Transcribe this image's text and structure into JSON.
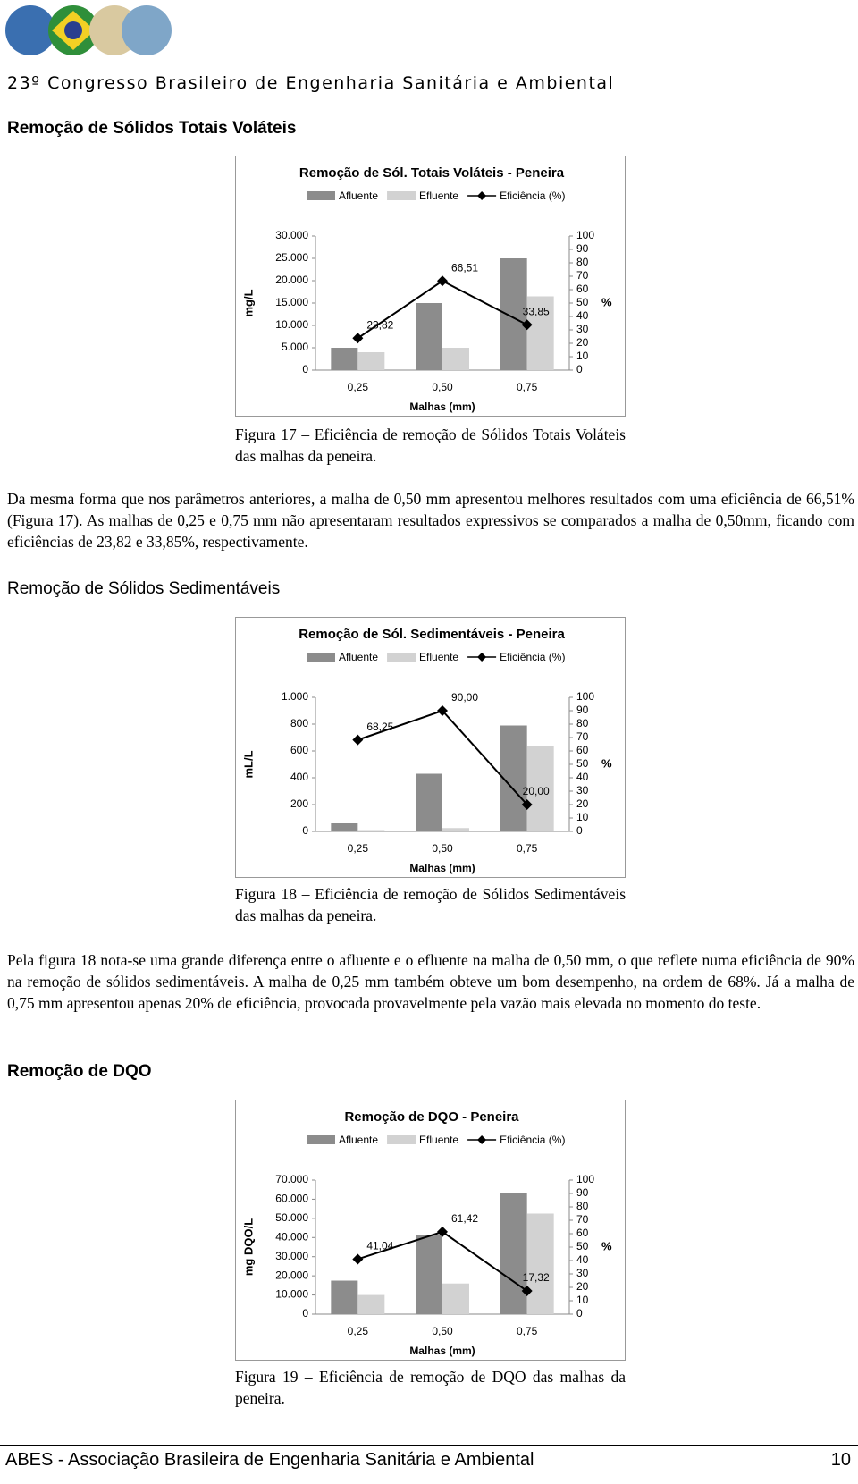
{
  "header": {
    "title": "23º Congresso Brasileiro de Engenharia Sanitária e Ambiental"
  },
  "sections": [
    {
      "heading": "Remoção de Sólidos Totais Voláteis",
      "caption": "Figura 17 – Eficiência de remoção de Sólidos Totais Voláteis das malhas da peneira.",
      "paragraph": "Da mesma forma que nos parâmetros anteriores, a malha de 0,50 mm apresentou melhores resultados com uma eficiência de 66,51% (Figura 17). As malhas de 0,25 e 0,75 mm não apresentaram resultados expressivos se comparados a malha de 0,50mm, ficando com eficiências de 23,82 e 33,85%, respectivamente."
    },
    {
      "heading": "Remoção de Sólidos Sedimentáveis",
      "caption": "Figura 18 – Eficiência de remoção de Sólidos Sedimentáveis das malhas da peneira.",
      "paragraph": "Pela figura 18 nota-se uma grande diferença entre o afluente e o efluente na malha de 0,50 mm, o que reflete numa eficiência de 90% na remoção de sólidos sedimentáveis. A malha de 0,25 mm também obteve um bom desempenho, na ordem de 68%. Já a malha de 0,75 mm apresentou apenas 20% de eficiência, provocada provavelmente pela vazão mais elevada no momento do teste."
    },
    {
      "heading": "Remoção de DQO",
      "caption": "Figura 19 – Eficiência de remoção de DQO das malhas da peneira."
    }
  ],
  "chart_data": [
    {
      "type": "bar_line",
      "title": "Remoção de Sól. Totais Voláteis - Peneira",
      "x_label": "Malhas (mm)",
      "y_label": "mg/L",
      "y2_label": "%",
      "categories": [
        "0,25",
        "0,50",
        "0,75"
      ],
      "ylim": [
        0,
        30000
      ],
      "yticks": [
        0,
        {
          "value": 5000,
          "label": "5.000"
        },
        {
          "value": 10000,
          "label": "10.000"
        },
        {
          "value": 15000,
          "label": "15.000"
        },
        {
          "value": 20000,
          "label": "20.000"
        },
        {
          "value": 25000,
          "label": "25.000"
        },
        {
          "value": 30000,
          "label": "30.000"
        }
      ],
      "y2lim": [
        0,
        100
      ],
      "y2ticks": [
        0,
        10,
        20,
        30,
        40,
        50,
        60,
        70,
        80,
        90,
        100
      ],
      "series": [
        {
          "name": "Afluente",
          "color": "#8c8c8c",
          "values": [
            5000,
            15000,
            25000
          ]
        },
        {
          "name": "Efluente",
          "color": "#d2d2d2",
          "values": [
            4000,
            5000,
            16500
          ]
        },
        {
          "name": "Eficiência (%)",
          "color": "#000000",
          "axis": "y2",
          "values": [
            23.82,
            66.51,
            33.85
          ],
          "value_labels": [
            "23,82",
            "66,51",
            "33,85"
          ]
        }
      ]
    },
    {
      "type": "bar_line",
      "title": "Remoção de Sól. Sedimentáveis - Peneira",
      "x_label": "Malhas (mm)",
      "y_label": "mL/L",
      "y2_label": "%",
      "categories": [
        "0,25",
        "0,50",
        "0,75"
      ],
      "ylim": [
        0,
        1000
      ],
      "yticks": [
        0,
        200,
        400,
        600,
        800,
        {
          "value": 1000,
          "label": "1.000"
        }
      ],
      "y2lim": [
        0,
        100
      ],
      "y2ticks": [
        0,
        10,
        20,
        30,
        40,
        50,
        60,
        70,
        80,
        90,
        100
      ],
      "series": [
        {
          "name": "Afluente",
          "color": "#8c8c8c",
          "values": [
            60,
            430,
            790
          ]
        },
        {
          "name": "Efluente",
          "color": "#d2d2d2",
          "values": [
            10,
            25,
            635
          ]
        },
        {
          "name": "Eficiência (%)",
          "color": "#000000",
          "axis": "y2",
          "values": [
            68.25,
            90.0,
            20.0
          ],
          "value_labels": [
            "68,25",
            "90,00",
            "20,00"
          ]
        }
      ]
    },
    {
      "type": "bar_line",
      "title": "Remoção de DQO - Peneira",
      "x_label": "Malhas (mm)",
      "y_label": "mg DQO/L",
      "y2_label": "%",
      "categories": [
        "0,25",
        "0,50",
        "0,75"
      ],
      "ylim": [
        0,
        70000
      ],
      "yticks": [
        0,
        {
          "value": 10000,
          "label": "10.000"
        },
        {
          "value": 20000,
          "label": "20.000"
        },
        {
          "value": 30000,
          "label": "30.000"
        },
        {
          "value": 40000,
          "label": "40.000"
        },
        {
          "value": 50000,
          "label": "50.000"
        },
        {
          "value": 60000,
          "label": "60.000"
        },
        {
          "value": 70000,
          "label": "70.000"
        }
      ],
      "y2lim": [
        0,
        100
      ],
      "y2ticks": [
        0,
        10,
        20,
        30,
        40,
        50,
        60,
        70,
        80,
        90,
        100
      ],
      "series": [
        {
          "name": "Afluente",
          "color": "#8c8c8c",
          "values": [
            17500,
            41500,
            63000
          ]
        },
        {
          "name": "Efluente",
          "color": "#d2d2d2",
          "values": [
            10000,
            16000,
            52500
          ]
        },
        {
          "name": "Eficiência (%)",
          "color": "#000000",
          "axis": "y2",
          "values": [
            41.04,
            61.42,
            17.32
          ],
          "value_labels": [
            "41,04",
            "61,42",
            "17,32"
          ]
        }
      ]
    }
  ],
  "footer": {
    "text": "ABES - Associação Brasileira de Engenharia Sanitária e Ambiental",
    "page": 10
  }
}
